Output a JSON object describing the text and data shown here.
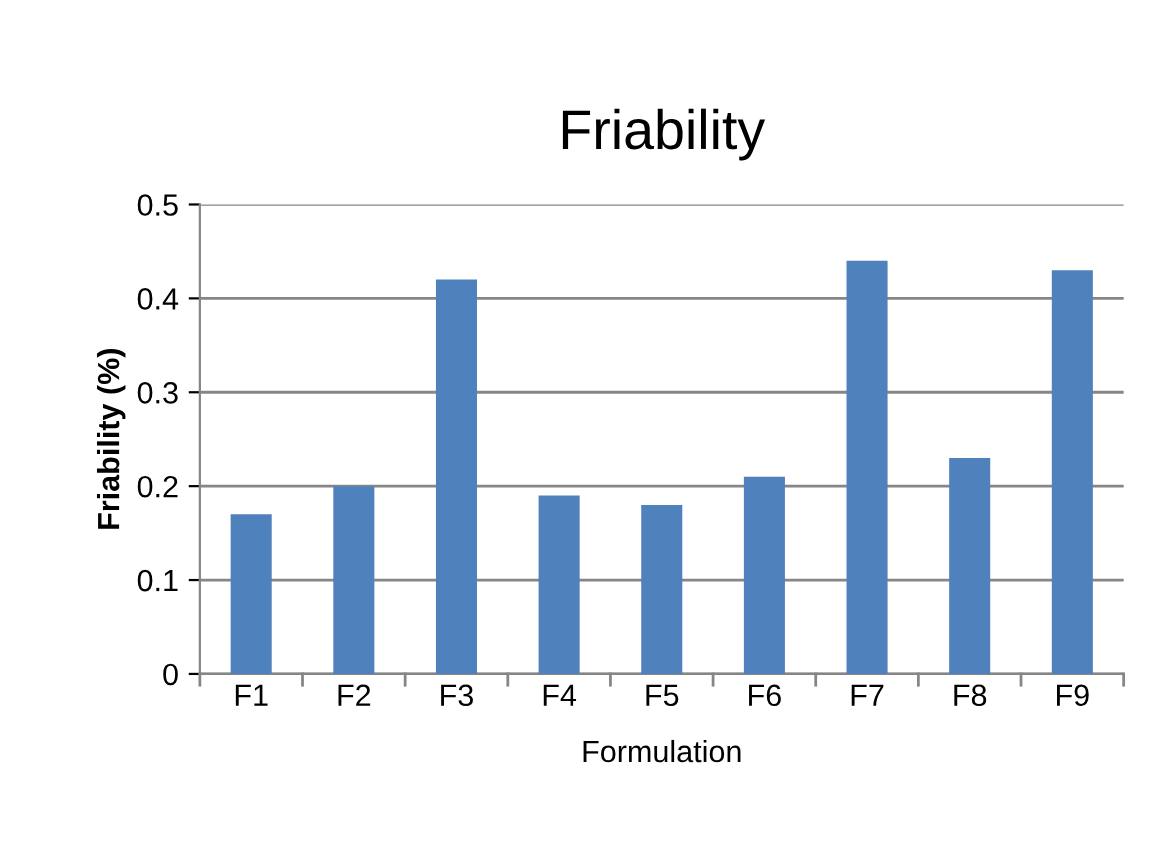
{
  "chart_data": {
    "type": "bar",
    "title": "Friability",
    "xlabel": "Formulation",
    "ylabel": "Friability (%)",
    "categories": [
      "F1",
      "F2",
      "F3",
      "F4",
      "F5",
      "F6",
      "F7",
      "F8",
      "F9"
    ],
    "values": [
      0.17,
      0.2,
      0.42,
      0.19,
      0.18,
      0.21,
      0.44,
      0.23,
      0.43
    ],
    "color": "#4f81bd",
    "ylim": [
      0,
      0.5
    ],
    "yticks": [
      {
        "value": 0,
        "label": "0"
      },
      0.1,
      0.2,
      0.3,
      0.4,
      0.5
    ],
    "grid": "y"
  }
}
